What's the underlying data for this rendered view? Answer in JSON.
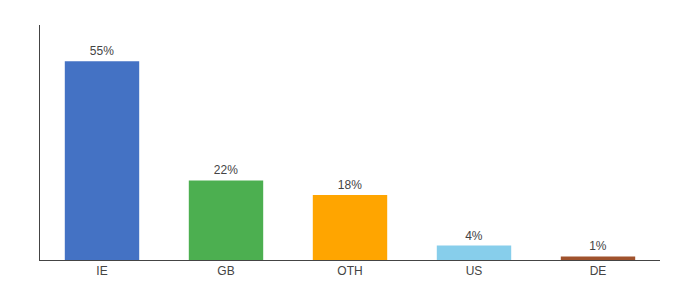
{
  "chart_data": {
    "type": "bar",
    "categories": [
      "IE",
      "GB",
      "OTH",
      "US",
      "DE"
    ],
    "values": [
      55,
      22,
      18,
      4,
      1
    ],
    "value_labels": [
      "55%",
      "22%",
      "18%",
      "4%",
      "1%"
    ],
    "colors": [
      "#4472C4",
      "#4CAF50",
      "#FFA500",
      "#87CEEB",
      "#A0522D"
    ],
    "ylim": [
      0,
      65
    ],
    "data_labels": true,
    "tick_labels": "x",
    "grid": false
  }
}
